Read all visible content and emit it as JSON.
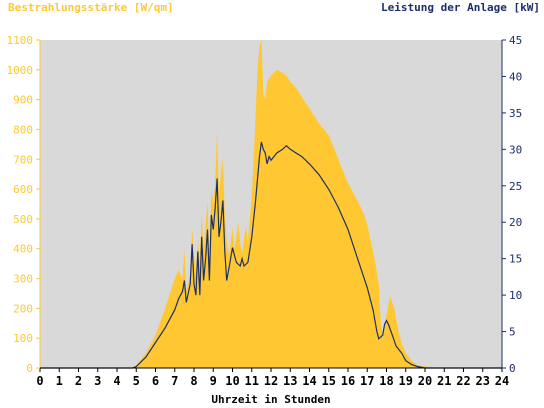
{
  "chart_data": {
    "type": "area",
    "ylabel_left": "Bestrahlungsstärke [W/qm]",
    "ylabel_right": "Leistung der Anlage [kW]",
    "xlabel": "Uhrzeit in Stunden",
    "xlim": [
      0,
      24
    ],
    "ylim_left": [
      0,
      1100
    ],
    "ylim_right": [
      0,
      45
    ],
    "x_ticks": [
      "0",
      "1",
      "2",
      "3",
      "4",
      "5",
      "6",
      "7",
      "8",
      "9",
      "10",
      "11",
      "12",
      "13",
      "14",
      "15",
      "16",
      "17",
      "18",
      "19",
      "20",
      "21",
      "22",
      "23",
      "24"
    ],
    "y_ticks_left": [
      "0",
      "100",
      "200",
      "300",
      "400",
      "500",
      "600",
      "700",
      "800",
      "900",
      "1000",
      "1100"
    ],
    "y_ticks_right": [
      "0",
      "5",
      "10",
      "15",
      "20",
      "25",
      "30",
      "35",
      "40",
      "45"
    ],
    "grid": false,
    "series": [
      {
        "name": "Bestrahlungsstärke [W/qm]",
        "axis": "left",
        "kind": "area",
        "x": [
          0,
          4.8,
          5.0,
          5.5,
          6.0,
          6.5,
          7.0,
          7.2,
          7.4,
          7.5,
          7.6,
          7.8,
          7.9,
          8.0,
          8.1,
          8.2,
          8.3,
          8.4,
          8.5,
          8.6,
          8.7,
          8.8,
          8.9,
          9.0,
          9.1,
          9.2,
          9.3,
          9.4,
          9.5,
          9.6,
          9.7,
          9.8,
          9.9,
          10.0,
          10.1,
          10.2,
          10.3,
          10.4,
          10.5,
          10.6,
          10.7,
          10.8,
          10.9,
          11.0,
          11.1,
          11.2,
          11.3,
          11.4,
          11.5,
          11.55,
          11.6,
          11.7,
          11.8,
          12.0,
          12.3,
          12.6,
          12.8,
          13.0,
          13.3,
          13.6,
          14.0,
          14.5,
          15.0,
          15.5,
          16.0,
          16.5,
          16.8,
          17.0,
          17.2,
          17.4,
          17.6,
          17.7,
          17.8,
          17.9,
          18.0,
          18.2,
          18.4,
          18.6,
          18.8,
          19.0,
          19.3,
          19.6,
          20.0,
          20.3,
          21.0,
          24.0
        ],
        "values": [
          0,
          0,
          10,
          50,
          110,
          200,
          300,
          330,
          300,
          400,
          260,
          310,
          470,
          380,
          320,
          430,
          360,
          520,
          400,
          480,
          560,
          380,
          600,
          550,
          620,
          800,
          580,
          650,
          700,
          520,
          430,
          380,
          420,
          470,
          400,
          440,
          490,
          420,
          380,
          430,
          480,
          420,
          500,
          580,
          700,
          850,
          1000,
          1080,
          1100,
          1020,
          920,
          900,
          960,
          980,
          1000,
          990,
          980,
          960,
          940,
          910,
          870,
          820,
          780,
          700,
          620,
          560,
          520,
          480,
          420,
          360,
          280,
          160,
          100,
          140,
          180,
          240,
          200,
          130,
          80,
          50,
          25,
          10,
          5,
          2,
          0,
          0
        ]
      },
      {
        "name": "Leistung der Anlage [kW]",
        "axis": "right",
        "kind": "line",
        "x": [
          0,
          4.8,
          5.0,
          5.5,
          6.0,
          6.5,
          7.0,
          7.2,
          7.4,
          7.5,
          7.6,
          7.8,
          7.9,
          8.0,
          8.1,
          8.2,
          8.3,
          8.4,
          8.5,
          8.6,
          8.7,
          8.8,
          8.9,
          9.0,
          9.1,
          9.2,
          9.3,
          9.4,
          9.5,
          9.6,
          9.7,
          9.8,
          9.9,
          10.0,
          10.2,
          10.4,
          10.5,
          10.6,
          10.8,
          11.0,
          11.2,
          11.4,
          11.5,
          11.6,
          11.7,
          11.8,
          11.9,
          12.0,
          12.3,
          12.6,
          12.8,
          13.0,
          13.3,
          13.6,
          14.0,
          14.5,
          15.0,
          15.5,
          16.0,
          16.5,
          17.0,
          17.3,
          17.5,
          17.6,
          17.8,
          17.9,
          18.0,
          18.1,
          18.3,
          18.5,
          18.8,
          19.0,
          19.3,
          19.6,
          20.0,
          20.3,
          21.0,
          24.0
        ],
        "values": [
          0,
          0,
          0.2,
          1.5,
          3.5,
          5.5,
          8,
          9.5,
          10.5,
          12,
          9,
          11.5,
          17,
          11.5,
          10,
          16,
          10,
          18,
          12,
          15,
          19,
          12,
          21,
          19,
          22,
          26,
          18,
          20,
          23,
          16,
          12,
          13.5,
          15,
          16.5,
          14.5,
          14,
          15,
          14,
          14.5,
          18,
          23,
          29,
          31,
          30,
          29.5,
          28,
          29,
          28.5,
          29.5,
          30,
          30.5,
          30,
          29.5,
          29,
          28,
          26.5,
          24.5,
          22,
          19,
          15,
          11,
          8,
          5,
          4,
          4.5,
          6,
          6.5,
          6,
          4.5,
          3,
          2,
          1,
          0.5,
          0.2,
          0,
          0,
          0,
          0
        ]
      }
    ],
    "colors": {
      "area": "#ffc832",
      "line": "#1c2f66",
      "plot_bg": "#d9d9d9",
      "left_axis_text": "#ffc832",
      "right_axis_text": "#1c2f66",
      "xlabel_text": "#000000"
    }
  }
}
